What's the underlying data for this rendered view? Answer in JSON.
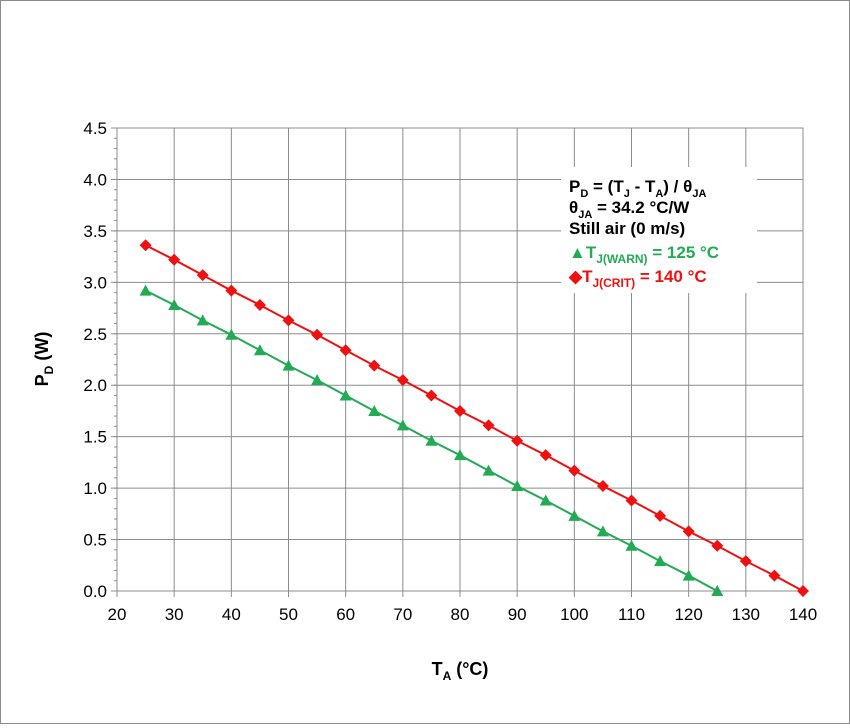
{
  "chart_data": {
    "type": "line",
    "xlabel": {
      "main": "T",
      "sub": "A",
      "suffix": " (°C)"
    },
    "ylabel": {
      "main": "P",
      "sub": "D",
      "suffix": " (W)"
    },
    "xlim": [
      20,
      140
    ],
    "ylim": [
      0,
      4.5
    ],
    "x_ticks": [
      "20",
      "30",
      "40",
      "50",
      "60",
      "70",
      "80",
      "90",
      "100",
      "110",
      "120",
      "130",
      "140"
    ],
    "y_ticks": [
      "0.0",
      "0.5",
      "1.0",
      "1.5",
      "2.0",
      "2.5",
      "3.0",
      "3.5",
      "4.0",
      "4.5"
    ],
    "grid": true,
    "series": [
      {
        "name": "T_J(WARN) = 125 °C",
        "color": "#22aa55",
        "marker": "triangle",
        "x": [
          25,
          30,
          35,
          40,
          45,
          50,
          55,
          60,
          65,
          70,
          75,
          80,
          85,
          90,
          95,
          100,
          105,
          110,
          115,
          120,
          125
        ],
        "y": [
          2.92,
          2.78,
          2.63,
          2.49,
          2.34,
          2.19,
          2.05,
          1.9,
          1.75,
          1.61,
          1.46,
          1.32,
          1.17,
          1.02,
          0.88,
          0.73,
          0.58,
          0.44,
          0.29,
          0.15,
          0.0
        ]
      },
      {
        "name": "T_J(CRIT) = 140 °C",
        "color": "#ee1111",
        "marker": "diamond",
        "x": [
          25,
          30,
          35,
          40,
          45,
          50,
          55,
          60,
          65,
          70,
          75,
          80,
          85,
          90,
          95,
          100,
          105,
          110,
          115,
          120,
          125,
          130,
          135,
          140
        ],
        "y": [
          3.36,
          3.22,
          3.07,
          2.92,
          2.78,
          2.63,
          2.49,
          2.34,
          2.19,
          2.05,
          1.9,
          1.75,
          1.61,
          1.46,
          1.32,
          1.17,
          1.02,
          0.88,
          0.73,
          0.58,
          0.44,
          0.29,
          0.15,
          0.0
        ]
      }
    ],
    "annotations": {
      "formula": {
        "p": "P",
        "p_sub": "D",
        "eq": " = (T",
        "tj_sub": "J",
        "minus": " - T",
        "ta_sub": "A",
        "div": ") / θ",
        "theta_sub": "JA"
      },
      "theta": {
        "main": "θ",
        "sub": "JA",
        "rest": " = 34.2 °C/W"
      },
      "air": "Still air (0 m/s)",
      "warn": {
        "symbol": "▲",
        "main": "T",
        "sub": "J(WARN)",
        "rest": " = 125 °C"
      },
      "crit": {
        "symbol": "◆",
        "main": "T",
        "sub": "J(CRIT)",
        "rest": " = 140 °C"
      }
    }
  }
}
